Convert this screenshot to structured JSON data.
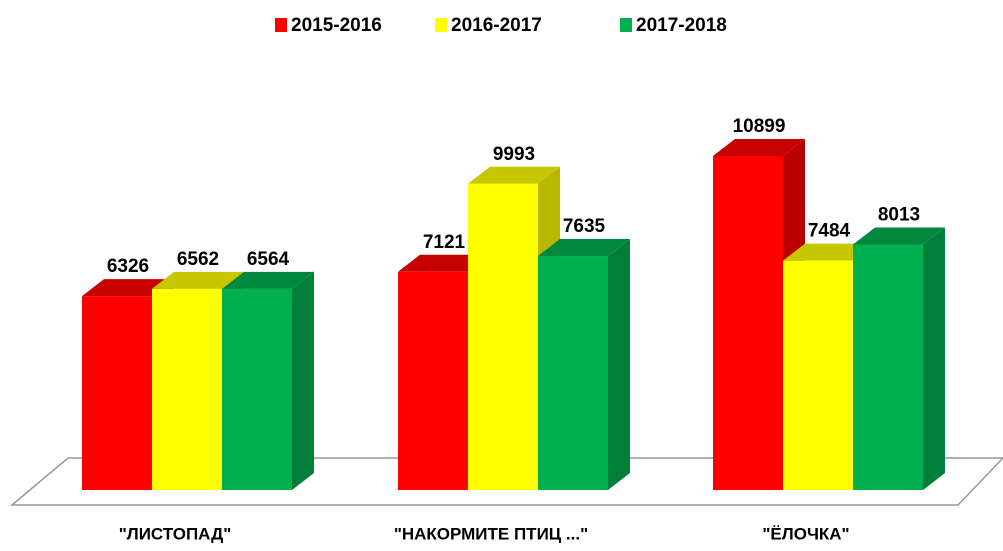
{
  "chart_data": {
    "type": "bar3d",
    "categories": [
      "\"ЛИСТОПАД\"",
      "\"НАКОРМИТЕ ПТИЦ ...\"",
      "\"ЁЛОЧКА\""
    ],
    "series": [
      {
        "name": "2015-2016",
        "color": "#ff0000",
        "values": [
          6326,
          7121,
          10899
        ]
      },
      {
        "name": "2016-2017",
        "color": "#ffff00",
        "values": [
          6562,
          9993,
          7484
        ]
      },
      {
        "name": "2017-2018",
        "color": "#00b050",
        "values": [
          6564,
          7635,
          8013
        ]
      }
    ],
    "legend": "top"
  }
}
